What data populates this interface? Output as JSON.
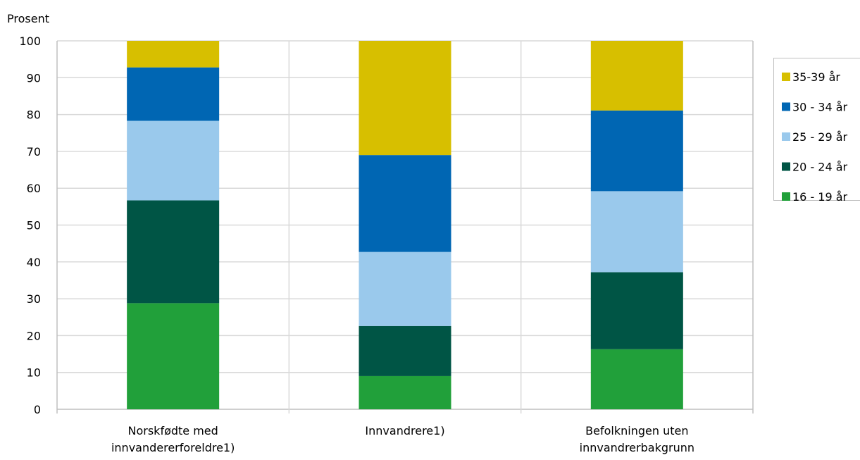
{
  "chart_data": {
    "type": "bar",
    "stacked": true,
    "ylabel": "Prosent",
    "ylim": [
      0,
      100
    ],
    "yticks": [
      0,
      10,
      20,
      30,
      40,
      50,
      60,
      70,
      80,
      90,
      100
    ],
    "grid": true,
    "legend_position": "right",
    "categories": [
      [
        "Norskfødte med",
        "innvandererforeldre1)"
      ],
      [
        "Innvandrere1)"
      ],
      [
        "Befolkningen uten",
        "innvandrerbakgrunn"
      ]
    ],
    "series": [
      {
        "name": "16 - 19 år",
        "color": "#21a03a",
        "values": [
          28.8,
          9.0,
          16.3
        ]
      },
      {
        "name": "20 - 24 år",
        "color": "#005545",
        "values": [
          27.9,
          13.6,
          20.9
        ]
      },
      {
        "name": "25 - 29 år",
        "color": "#9ac9ec",
        "values": [
          21.6,
          20.1,
          22.0
        ]
      },
      {
        "name": "30 - 34 år",
        "color": "#0066b3",
        "values": [
          14.5,
          26.3,
          21.9
        ]
      },
      {
        "name": "35-39 år",
        "color": "#d7bf00",
        "values": [
          7.2,
          31.0,
          18.9
        ]
      }
    ],
    "legend_order": [
      "35-39 år",
      "30 - 34 år",
      "25 - 29 år",
      "20 - 24 år",
      "16 - 19 år"
    ],
    "colors": {
      "grid": "#d9d9d9",
      "axis": "#bfbfbf",
      "legend_border": "#bfbfbf"
    }
  }
}
